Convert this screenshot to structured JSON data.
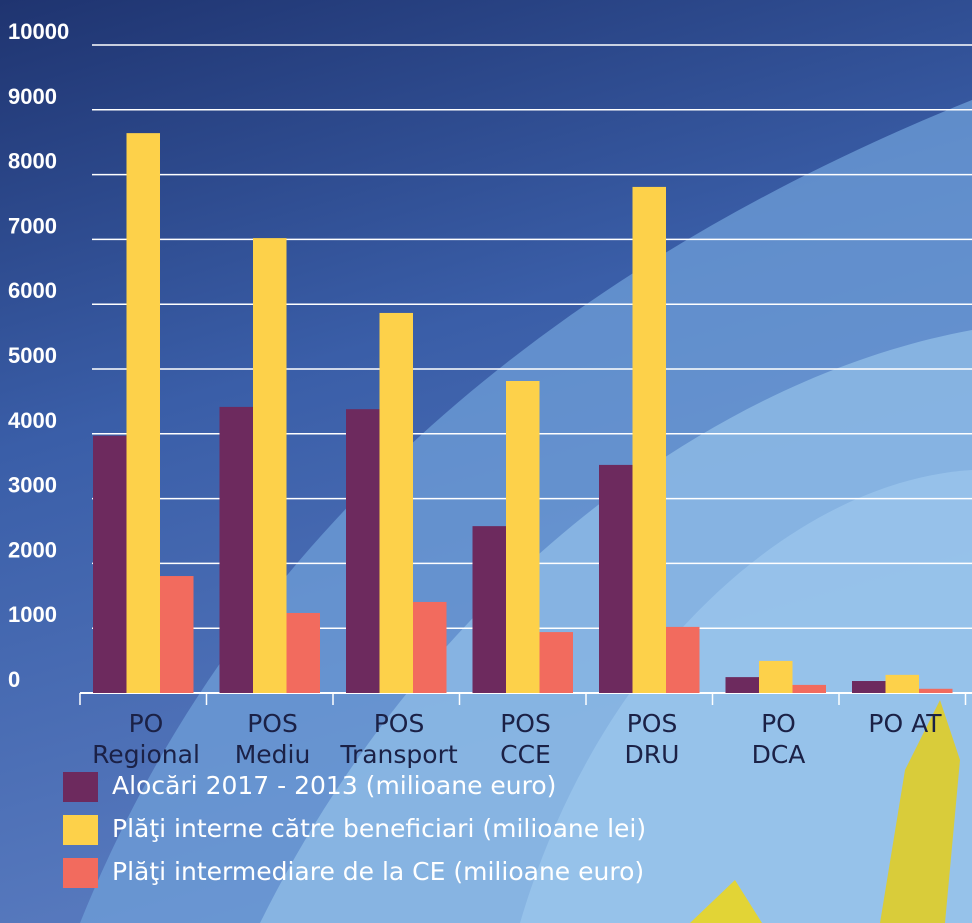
{
  "chart_data": {
    "type": "bar",
    "categories": [
      "PO\nRegional",
      "POS\nMediu",
      "POS\nTransport",
      "POS\nCCE",
      "POS\nDRU",
      "PO\nDCA",
      "PO AT"
    ],
    "series": [
      {
        "name": "Alocări 2017 - 2013 (milioane euro)",
        "color": "#6d2a5e",
        "values": [
          3970,
          4415,
          4380,
          2575,
          3520,
          245,
          185
        ]
      },
      {
        "name": "Plăţi interne către beneficiari (milioane lei)",
        "color": "#fdd14a",
        "values": [
          8640,
          7020,
          5865,
          4815,
          7810,
          495,
          280
        ]
      },
      {
        "name": "Plăţi intermediare de la CE (milioane euro)",
        "color": "#f26b5e",
        "values": [
          1805,
          1235,
          1405,
          940,
          1020,
          125,
          65
        ]
      }
    ],
    "ylim": [
      0,
      10000
    ],
    "yticks": [
      0,
      1000,
      2000,
      3000,
      4000,
      5000,
      6000,
      7000,
      8000,
      9000,
      10000
    ],
    "grid": true
  }
}
